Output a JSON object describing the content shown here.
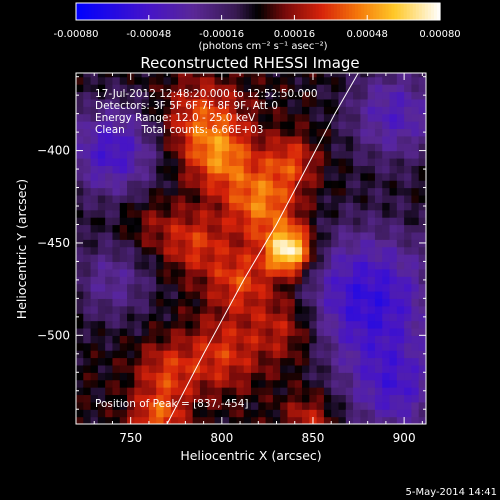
{
  "chart_data": {
    "type": "heatmap",
    "title": "Reconstructed RHESSI Image",
    "xlabel": "Heliocentric X (arcsec)",
    "ylabel": "Heliocentric Y (arcsec)",
    "xlim": [
      720,
      912
    ],
    "ylim": [
      -548,
      -358
    ],
    "x_ticks": [
      750,
      800,
      850,
      900
    ],
    "y_ticks": [
      -400,
      -450,
      -500
    ],
    "colorbar": {
      "range": [
        -0.0008,
        0.0008
      ],
      "tick_values": [
        -0.0008,
        -0.00048,
        -0.00016,
        0.00016,
        0.00048,
        0.0008
      ],
      "tick_labels": [
        "-0.00080",
        "-0.00048",
        "-0.00016",
        "0.00016",
        "0.00048",
        "0.00080"
      ],
      "units_label": "(photons cm⁻² s⁻¹ asec⁻²)"
    },
    "annotations": [
      "17-Jul-2012 12:48:20.000 to 12:52:50.000",
      "Detectors: 3F 5F 6F 7F 8F 9F, Att 0",
      "Energy Range: 12.0 - 25.0 keV",
      "Clean     Total counts: 6.66E+03"
    ],
    "peak_label": "Position of Peak = [837,-454]",
    "peak": {
      "x": 837,
      "y": -454
    },
    "limb_curve": [
      [
        770,
        -548
      ],
      [
        790,
        -510
      ],
      [
        812,
        -470
      ],
      [
        830,
        -440
      ],
      [
        846,
        -410
      ],
      [
        862,
        -380
      ],
      [
        876,
        -356
      ]
    ],
    "blobs": [
      {
        "x": 837,
        "y": -454,
        "amp": 1.0,
        "s": 9
      },
      {
        "x": 822,
        "y": -428,
        "amp": 0.55,
        "s": 14
      },
      {
        "x": 790,
        "y": -385,
        "amp": 0.45,
        "s": 16
      },
      {
        "x": 800,
        "y": -405,
        "amp": 0.4,
        "s": 12
      },
      {
        "x": 838,
        "y": -405,
        "amp": 0.35,
        "s": 10
      },
      {
        "x": 785,
        "y": -450,
        "amp": 0.35,
        "s": 12
      },
      {
        "x": 810,
        "y": -470,
        "amp": 0.4,
        "s": 12
      },
      {
        "x": 835,
        "y": -495,
        "amp": 0.35,
        "s": 14
      },
      {
        "x": 800,
        "y": -510,
        "amp": 0.35,
        "s": 14
      },
      {
        "x": 770,
        "y": -520,
        "amp": 0.35,
        "s": 12
      },
      {
        "x": 765,
        "y": -545,
        "amp": 0.45,
        "s": 10
      },
      {
        "x": 848,
        "y": -545,
        "amp": 0.3,
        "s": 10
      },
      {
        "x": 760,
        "y": -440,
        "amp": 0.18,
        "s": 12
      },
      {
        "x": 880,
        "y": -480,
        "amp": -0.7,
        "s": 26
      },
      {
        "x": 740,
        "y": -400,
        "amp": -0.6,
        "s": 18
      },
      {
        "x": 895,
        "y": -380,
        "amp": -0.5,
        "s": 18
      },
      {
        "x": 740,
        "y": -470,
        "amp": -0.35,
        "s": 16
      },
      {
        "x": 895,
        "y": -530,
        "amp": -0.5,
        "s": 18
      }
    ]
  },
  "footer": {
    "date": "5-May-2014 14:41"
  }
}
